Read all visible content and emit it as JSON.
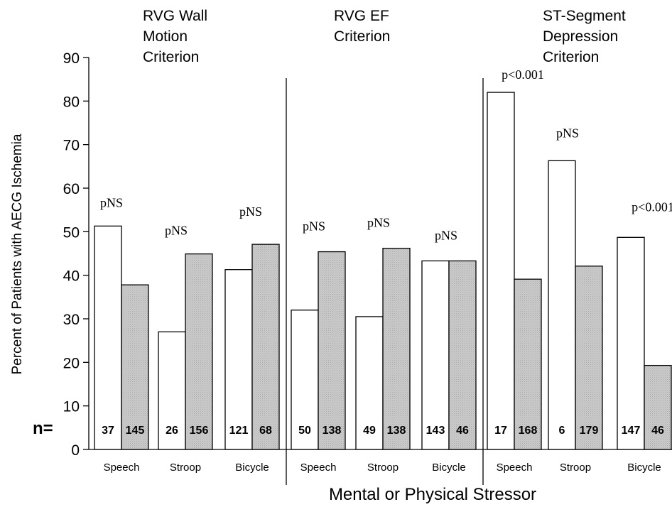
{
  "chart_data": {
    "type": "bar",
    "ylabel": "Percent of Patients with AECG Ischemia",
    "xlabel": "Mental or Physical Stressor",
    "ylim": [
      0,
      90
    ],
    "yticks": [
      0,
      10,
      20,
      30,
      40,
      50,
      60,
      70,
      80,
      90
    ],
    "n_label": "n=",
    "series_colors": [
      "#ffffff",
      "#c8c8c8"
    ],
    "groups": [
      {
        "title_lines": [
          "RVG Wall",
          "Motion",
          "Criterion"
        ],
        "stressors": [
          {
            "label": "Speech",
            "values": [
              51.3,
              37.8
            ],
            "n": [
              "37",
              "145"
            ],
            "p": "pNS"
          },
          {
            "label": "Stroop",
            "values": [
              27.0,
              44.9
            ],
            "n": [
              "26",
              "156"
            ],
            "p": "pNS"
          },
          {
            "label": "Bicycle",
            "values": [
              41.3,
              47.1
            ],
            "n": [
              "121",
              "68"
            ],
            "p": "pNS"
          }
        ]
      },
      {
        "title_lines": [
          "RVG EF",
          "Criterion"
        ],
        "stressors": [
          {
            "label": "Speech",
            "values": [
              32.0,
              45.4
            ],
            "n": [
              "50",
              "138"
            ],
            "p": "pNS"
          },
          {
            "label": "Stroop",
            "values": [
              30.5,
              46.2
            ],
            "n": [
              "49",
              "138"
            ],
            "p": "pNS"
          },
          {
            "label": "Bicycle",
            "values": [
              43.3,
              43.3
            ],
            "n": [
              "143",
              "46"
            ],
            "p": "pNS"
          }
        ]
      },
      {
        "title_lines": [
          "ST-Segment",
          "Depression",
          "Criterion"
        ],
        "stressors": [
          {
            "label": "Speech",
            "values": [
              82.0,
              39.1
            ],
            "n": [
              "17",
              "168"
            ],
            "p": "p<0.001"
          },
          {
            "label": "Stroop",
            "values": [
              66.3,
              42.1
            ],
            "n": [
              "6",
              "179"
            ],
            "p": "pNS"
          },
          {
            "label": "Bicycle",
            "values": [
              48.7,
              19.3
            ],
            "n": [
              "147",
              "46"
            ],
            "p": "p<0.001"
          }
        ]
      }
    ]
  }
}
